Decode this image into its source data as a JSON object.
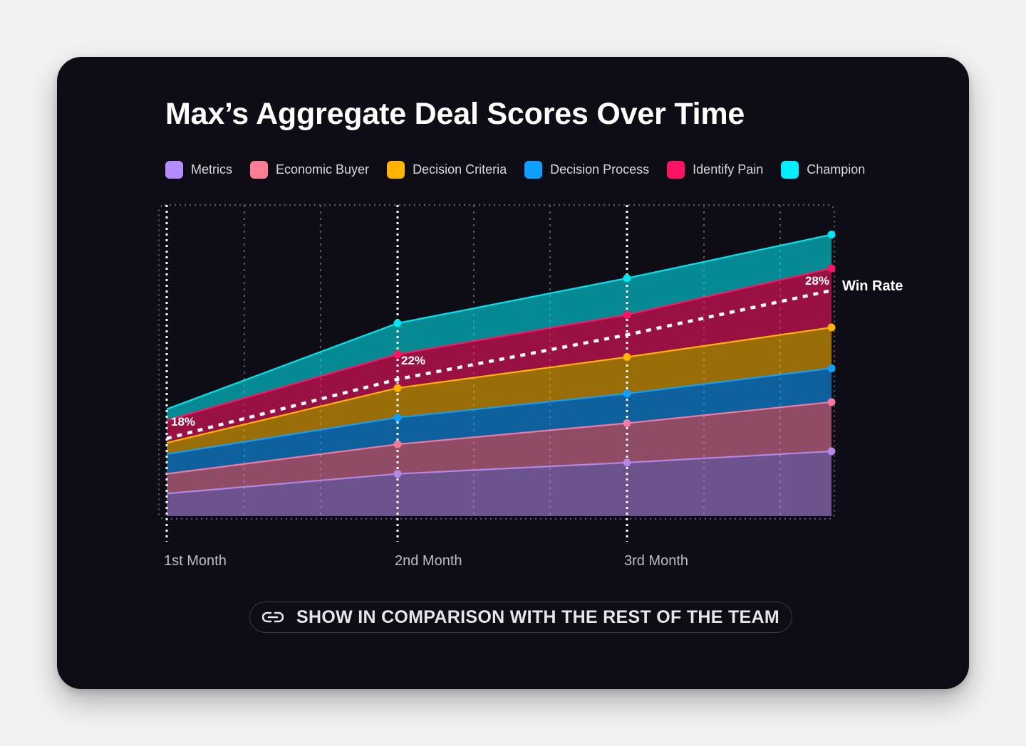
{
  "chart_data": {
    "type": "area",
    "stacked": true,
    "title": "Max’s Aggregate Deal Scores Over Time",
    "categories": [
      "1st Month",
      "2nd Month",
      "3rd Month",
      ""
    ],
    "series": [
      {
        "name": "Metrics",
        "color": "#b387e6",
        "values": [
          8,
          15,
          19,
          23
        ]
      },
      {
        "name": "Economic Buyer",
        "color": "#f27aa0",
        "values": [
          7,
          10.5,
          14,
          17.5
        ]
      },
      {
        "name": "Decision Process",
        "color": "#0f9fff",
        "values": [
          7,
          9.5,
          10.5,
          12
        ]
      },
      {
        "name": "Decision Criteria",
        "color": "#ffb400",
        "values": [
          4,
          10.5,
          13,
          14.5
        ]
      },
      {
        "name": "Identify Pain",
        "color": "#ff1464",
        "values": [
          8,
          12,
          15,
          21
        ]
      },
      {
        "name": "Champion",
        "color": "#00e5f0",
        "values": [
          4,
          11,
          13,
          12
        ]
      }
    ],
    "win_rate": {
      "name": "Win Rate",
      "values": [
        18,
        22,
        25,
        28
      ],
      "labels": [
        "18%",
        "22%",
        "",
        "28%"
      ]
    },
    "ylim": [
      0,
      110
    ],
    "grid": true,
    "legend_position": "top"
  },
  "legend": [
    {
      "label": "Metrics",
      "color": "#b48cff"
    },
    {
      "label": "Economic Buyer",
      "color": "#ff7c95"
    },
    {
      "label": "Decision Criteria",
      "color": "#ffb400"
    },
    {
      "label": "Decision Process",
      "color": "#0f9fff"
    },
    {
      "label": "Identify Pain",
      "color": "#ff1464"
    },
    {
      "label": "Champion",
      "color": "#00f0ff"
    }
  ],
  "compare_button": {
    "label": "SHOW IN COMPARISON WITH THE REST OF THE TEAM",
    "icon": "link-icon"
  }
}
